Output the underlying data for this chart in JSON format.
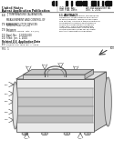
{
  "bg_color": "#ffffff",
  "text_color": "#222222",
  "title_line1": "United States",
  "title_line2": "Patent Application Publication",
  "pub_label": "(10) Pub. No.:",
  "pub_number": "US 2011/0000087 A1",
  "pub_date_label": "(43) Pub. Date:",
  "pub_date": "Dec. 1, 2011",
  "tag54": "(54)",
  "invention_title": "Tj TEMPERATURE CALIBRATION,\nMEASUREMENT AND CONTROL OF\nSEMICONDUCTOR DEVICES",
  "tag75": "(75)",
  "inventors_label": "Inventors:",
  "tag73": "(73)",
  "assignee_label": "Assignee:",
  "tag21": "(21)",
  "appl_label": "Appl. No.:",
  "tag22": "(22)",
  "filed_label": "Filed:",
  "related_label": "Related U.S. Application Data",
  "tag60": "(60)",
  "tag57": "(57)",
  "abstract_label": "ABSTRACT",
  "abstract_text": "A system and method for temperature\ncalibration, measurement and control\nof semiconductor devices is provided.\nThe system includes a thermal platform\nconfigured to receive and thermally\ncouple to a semiconductor device\nunder test. Various embodiments\ninclude measurement circuits and\ncontrol feedback loops for accurate\njunction temperature regulation.",
  "fig_label": "FIG. 1",
  "drawing_label": "100",
  "left_labels": [
    "102",
    "104",
    "106",
    "108",
    "110"
  ],
  "top_labels": [
    "112",
    "114",
    "116",
    "118"
  ],
  "bottom_labels": [
    "120",
    "122"
  ]
}
